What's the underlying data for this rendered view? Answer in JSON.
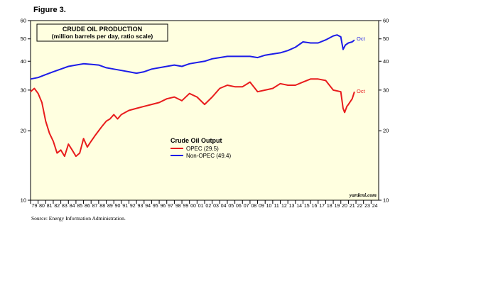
{
  "figure_label": "Figure 3.",
  "source": "Source: Energy Information Administration.",
  "colors": {
    "background": "#ffffe0",
    "opec": "#e81c1c",
    "non_opec": "#1c1ce8",
    "border": "#000000"
  },
  "chart_data": {
    "type": "line",
    "title": "CRUDE OIL PRODUCTION",
    "subtitle": "(million barrels per day, ratio scale)",
    "y_scale": "log",
    "ylim": [
      10,
      60
    ],
    "y_ticks": [
      10,
      20,
      30,
      40,
      50,
      60
    ],
    "xlim": [
      1979,
      2025
    ],
    "x_tick_labels": [
      "79",
      "80",
      "81",
      "82",
      "83",
      "84",
      "85",
      "86",
      "87",
      "88",
      "89",
      "90",
      "91",
      "92",
      "93",
      "94",
      "95",
      "96",
      "97",
      "98",
      "99",
      "00",
      "01",
      "02",
      "03",
      "04",
      "05",
      "06",
      "07",
      "08",
      "09",
      "10",
      "11",
      "12",
      "13",
      "14",
      "15",
      "16",
      "17",
      "18",
      "19",
      "20",
      "21",
      "22",
      "23",
      "24"
    ],
    "legend_title": "Crude Oil Output",
    "legend_position": "center-left",
    "watermark": "yardeni.com",
    "grid": false,
    "series": [
      {
        "name": "OPEC (29.5)",
        "end_label": "Oct",
        "color": "#e81c1c",
        "x": [
          1979.0,
          1979.5,
          1980.0,
          1980.5,
          1981.0,
          1981.5,
          1982.0,
          1982.5,
          1983.0,
          1983.5,
          1984.0,
          1984.5,
          1985.0,
          1985.5,
          1986.0,
          1986.5,
          1987.0,
          1987.5,
          1988.0,
          1988.5,
          1989.0,
          1989.5,
          1990.0,
          1990.5,
          1991.0,
          1991.5,
          1992.0,
          1993.0,
          1994.0,
          1995.0,
          1996.0,
          1997.0,
          1998.0,
          1999.0,
          2000.0,
          2001.0,
          2002.0,
          2003.0,
          2004.0,
          2005.0,
          2006.0,
          2007.0,
          2008.0,
          2009.0,
          2010.0,
          2011.0,
          2012.0,
          2013.0,
          2014.0,
          2015.0,
          2016.0,
          2017.0,
          2018.0,
          2019.0,
          2020.0,
          2020.3,
          2020.5,
          2020.8,
          2021.0,
          2021.5,
          2021.8
        ],
        "values": [
          29.5,
          30.5,
          29.0,
          26.5,
          22.0,
          19.5,
          18.0,
          16.0,
          16.5,
          15.5,
          17.5,
          16.5,
          15.5,
          16.0,
          18.5,
          17.0,
          18.0,
          19.0,
          20.0,
          21.0,
          22.0,
          22.5,
          23.5,
          22.5,
          23.5,
          24.0,
          24.5,
          25.0,
          25.5,
          26.0,
          26.5,
          27.5,
          28.0,
          27.0,
          29.0,
          28.0,
          26.0,
          28.0,
          30.5,
          31.5,
          31.0,
          31.0,
          32.5,
          29.5,
          30.0,
          30.5,
          32.0,
          31.5,
          31.5,
          32.5,
          33.5,
          33.5,
          33.0,
          30.0,
          29.5,
          25.0,
          24.0,
          25.5,
          26.0,
          27.5,
          29.5
        ]
      },
      {
        "name": "Non-OPEC (49.4)",
        "end_label": "Oct",
        "color": "#1c1ce8",
        "x": [
          1979.0,
          1980.0,
          1981.0,
          1982.0,
          1983.0,
          1984.0,
          1985.0,
          1986.0,
          1987.0,
          1988.0,
          1989.0,
          1990.0,
          1991.0,
          1992.0,
          1993.0,
          1994.0,
          1995.0,
          1996.0,
          1997.0,
          1998.0,
          1999.0,
          2000.0,
          2001.0,
          2002.0,
          2003.0,
          2004.0,
          2005.0,
          2006.0,
          2007.0,
          2008.0,
          2009.0,
          2010.0,
          2011.0,
          2012.0,
          2013.0,
          2014.0,
          2015.0,
          2016.0,
          2017.0,
          2018.0,
          2019.0,
          2019.5,
          2020.0,
          2020.3,
          2020.6,
          2021.0,
          2021.5,
          2021.8
        ],
        "values": [
          33.5,
          34.0,
          35.0,
          36.0,
          37.0,
          38.0,
          38.5,
          39.0,
          38.8,
          38.5,
          37.5,
          37.0,
          36.5,
          36.0,
          35.5,
          36.0,
          37.0,
          37.5,
          38.0,
          38.5,
          38.0,
          39.0,
          39.5,
          40.0,
          41.0,
          41.5,
          42.0,
          42.0,
          42.0,
          42.0,
          41.5,
          42.5,
          43.0,
          43.5,
          44.5,
          46.0,
          48.5,
          48.0,
          48.0,
          49.5,
          51.5,
          52.0,
          51.0,
          45.0,
          47.0,
          48.0,
          48.5,
          49.4
        ]
      }
    ]
  }
}
